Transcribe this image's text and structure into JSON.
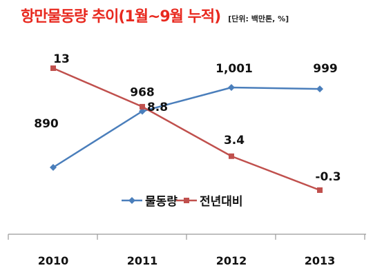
{
  "title": "항만물동량 추이(1월~9월 누적)",
  "unit": "[단위: 백만톤, %]",
  "colors": {
    "title": "#e8291f",
    "volume": "#4a7ebb",
    "yoy": "#c0504d",
    "axis": "#999999"
  },
  "chart_data": {
    "type": "line",
    "categories": [
      "2010",
      "2011",
      "2012",
      "2013"
    ],
    "series": [
      {
        "name": "물동량",
        "values": [
          890,
          968,
          1001,
          999
        ],
        "labels": [
          "890",
          "968",
          "1,001",
          "999"
        ],
        "marker": "diamond"
      },
      {
        "name": "전년대비",
        "values": [
          13,
          8.8,
          3.4,
          -0.3
        ],
        "labels": [
          "13",
          "8.8",
          "3.4",
          "-0.3"
        ],
        "marker": "square"
      }
    ],
    "legend_position": "bottom-center",
    "grid": false
  }
}
